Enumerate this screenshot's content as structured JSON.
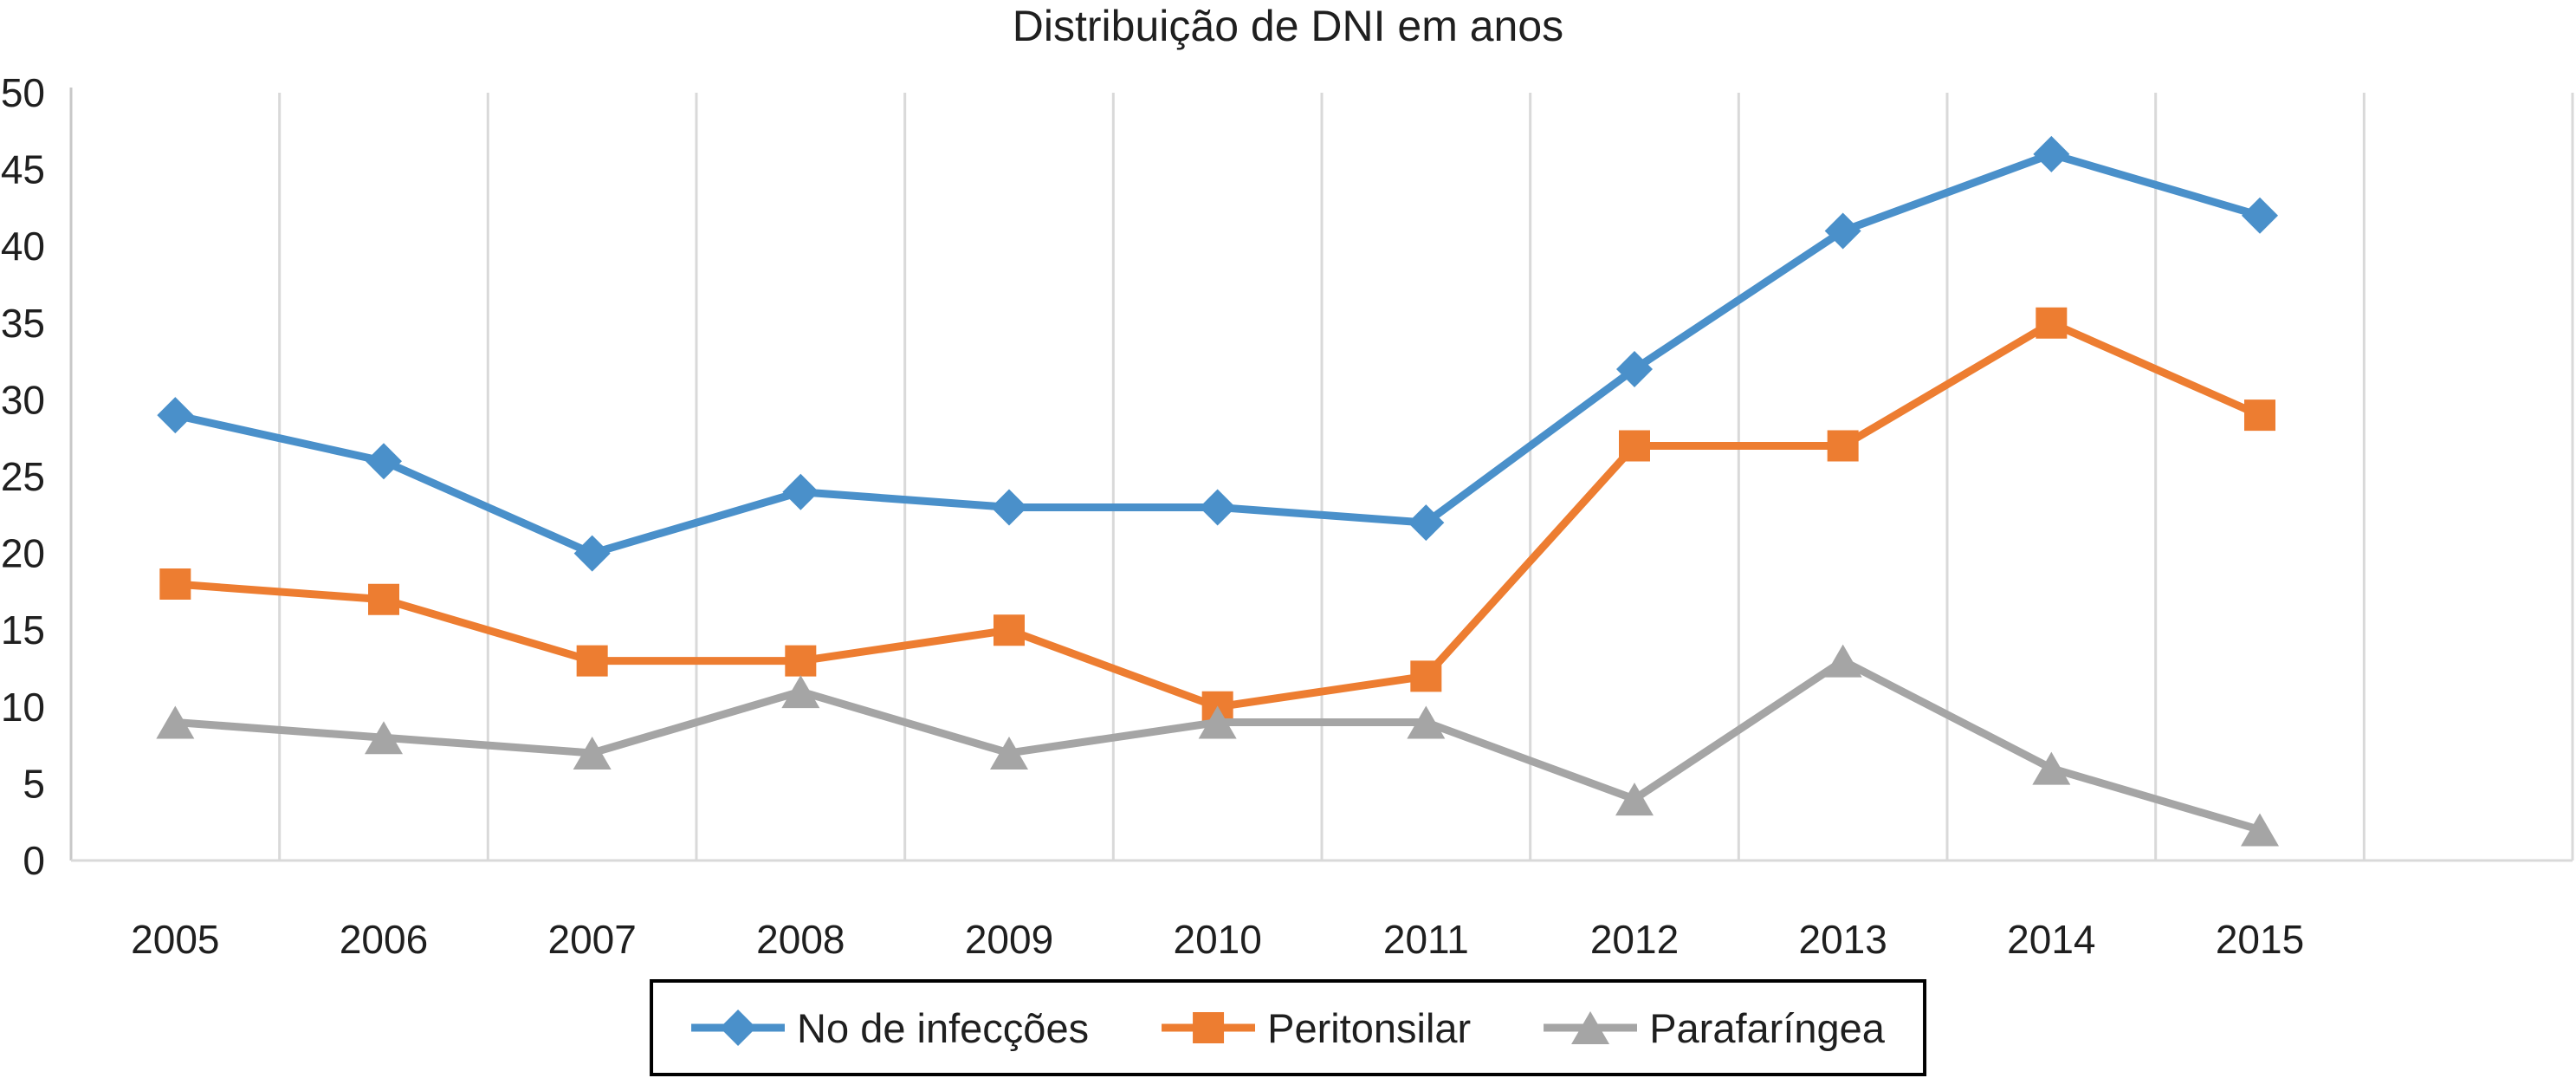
{
  "title": "Distribuição de DNI em anos",
  "chart_data": {
    "type": "line",
    "categories": [
      "2005",
      "2006",
      "2007",
      "2008",
      "2009",
      "2010",
      "2011",
      "2012",
      "2013",
      "2014",
      "2015"
    ],
    "series": [
      {
        "name": "No de infecções",
        "color": "#4A90CA",
        "marker": "diamond",
        "values": [
          29,
          26,
          20,
          24,
          23,
          23,
          22,
          32,
          41,
          46,
          42
        ]
      },
      {
        "name": "Peritonsilar",
        "color": "#ED7D31",
        "marker": "square",
        "values": [
          18,
          17,
          13,
          13,
          15,
          10,
          12,
          27,
          27,
          35,
          29
        ]
      },
      {
        "name": "Parafaríngea",
        "color": "#A5A5A5",
        "marker": "triangle",
        "values": [
          9,
          8,
          7,
          11,
          7,
          9,
          9,
          4,
          13,
          6,
          2
        ]
      }
    ],
    "title": "Distribuição de DNI em anos",
    "xlabel": "",
    "ylabel": "",
    "ylim": [
      0,
      50
    ],
    "ytick_step": 5,
    "grid": "vertical-only",
    "legend_position": "bottom-center",
    "colors": {
      "gridline": "#D9D9D9",
      "axis_line": "#C8C8C8",
      "text": "#1F1F1F",
      "legend_border": "#000000",
      "background": "#FFFFFF"
    }
  }
}
